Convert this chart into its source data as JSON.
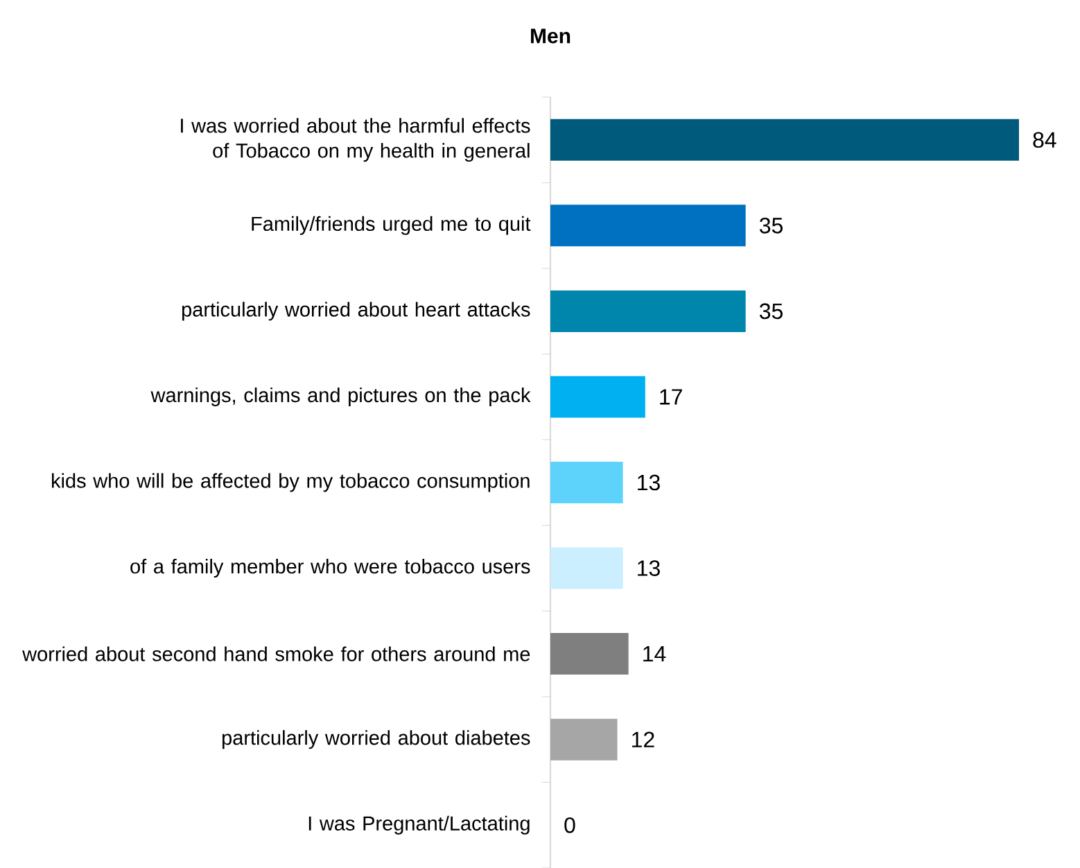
{
  "chart_data": {
    "type": "bar",
    "orientation": "horizontal",
    "title": "Men",
    "categories": [
      "I was worried about the harmful effects of Tobacco on my health in general",
      "Family/friends urged me to quit",
      "particularly worried about heart attacks",
      "warnings, claims and pictures on the pack",
      "kids who will be affected by my tobacco consumption",
      "of a family member who were tobacco users",
      "worried about second hand smoke for others around me",
      "particularly worried about diabetes",
      "I was Pregnant/Lactating"
    ],
    "values": [
      84,
      35,
      35,
      17,
      13,
      13,
      14,
      12,
      0
    ],
    "colors": [
      "#005a7c",
      "#0070c0",
      "#0086ad",
      "#00b0f0",
      "#5dd3fb",
      "#ccefff",
      "#7f7f7f",
      "#a6a6a6",
      "#a6a6a6"
    ],
    "data_labels": true
  }
}
